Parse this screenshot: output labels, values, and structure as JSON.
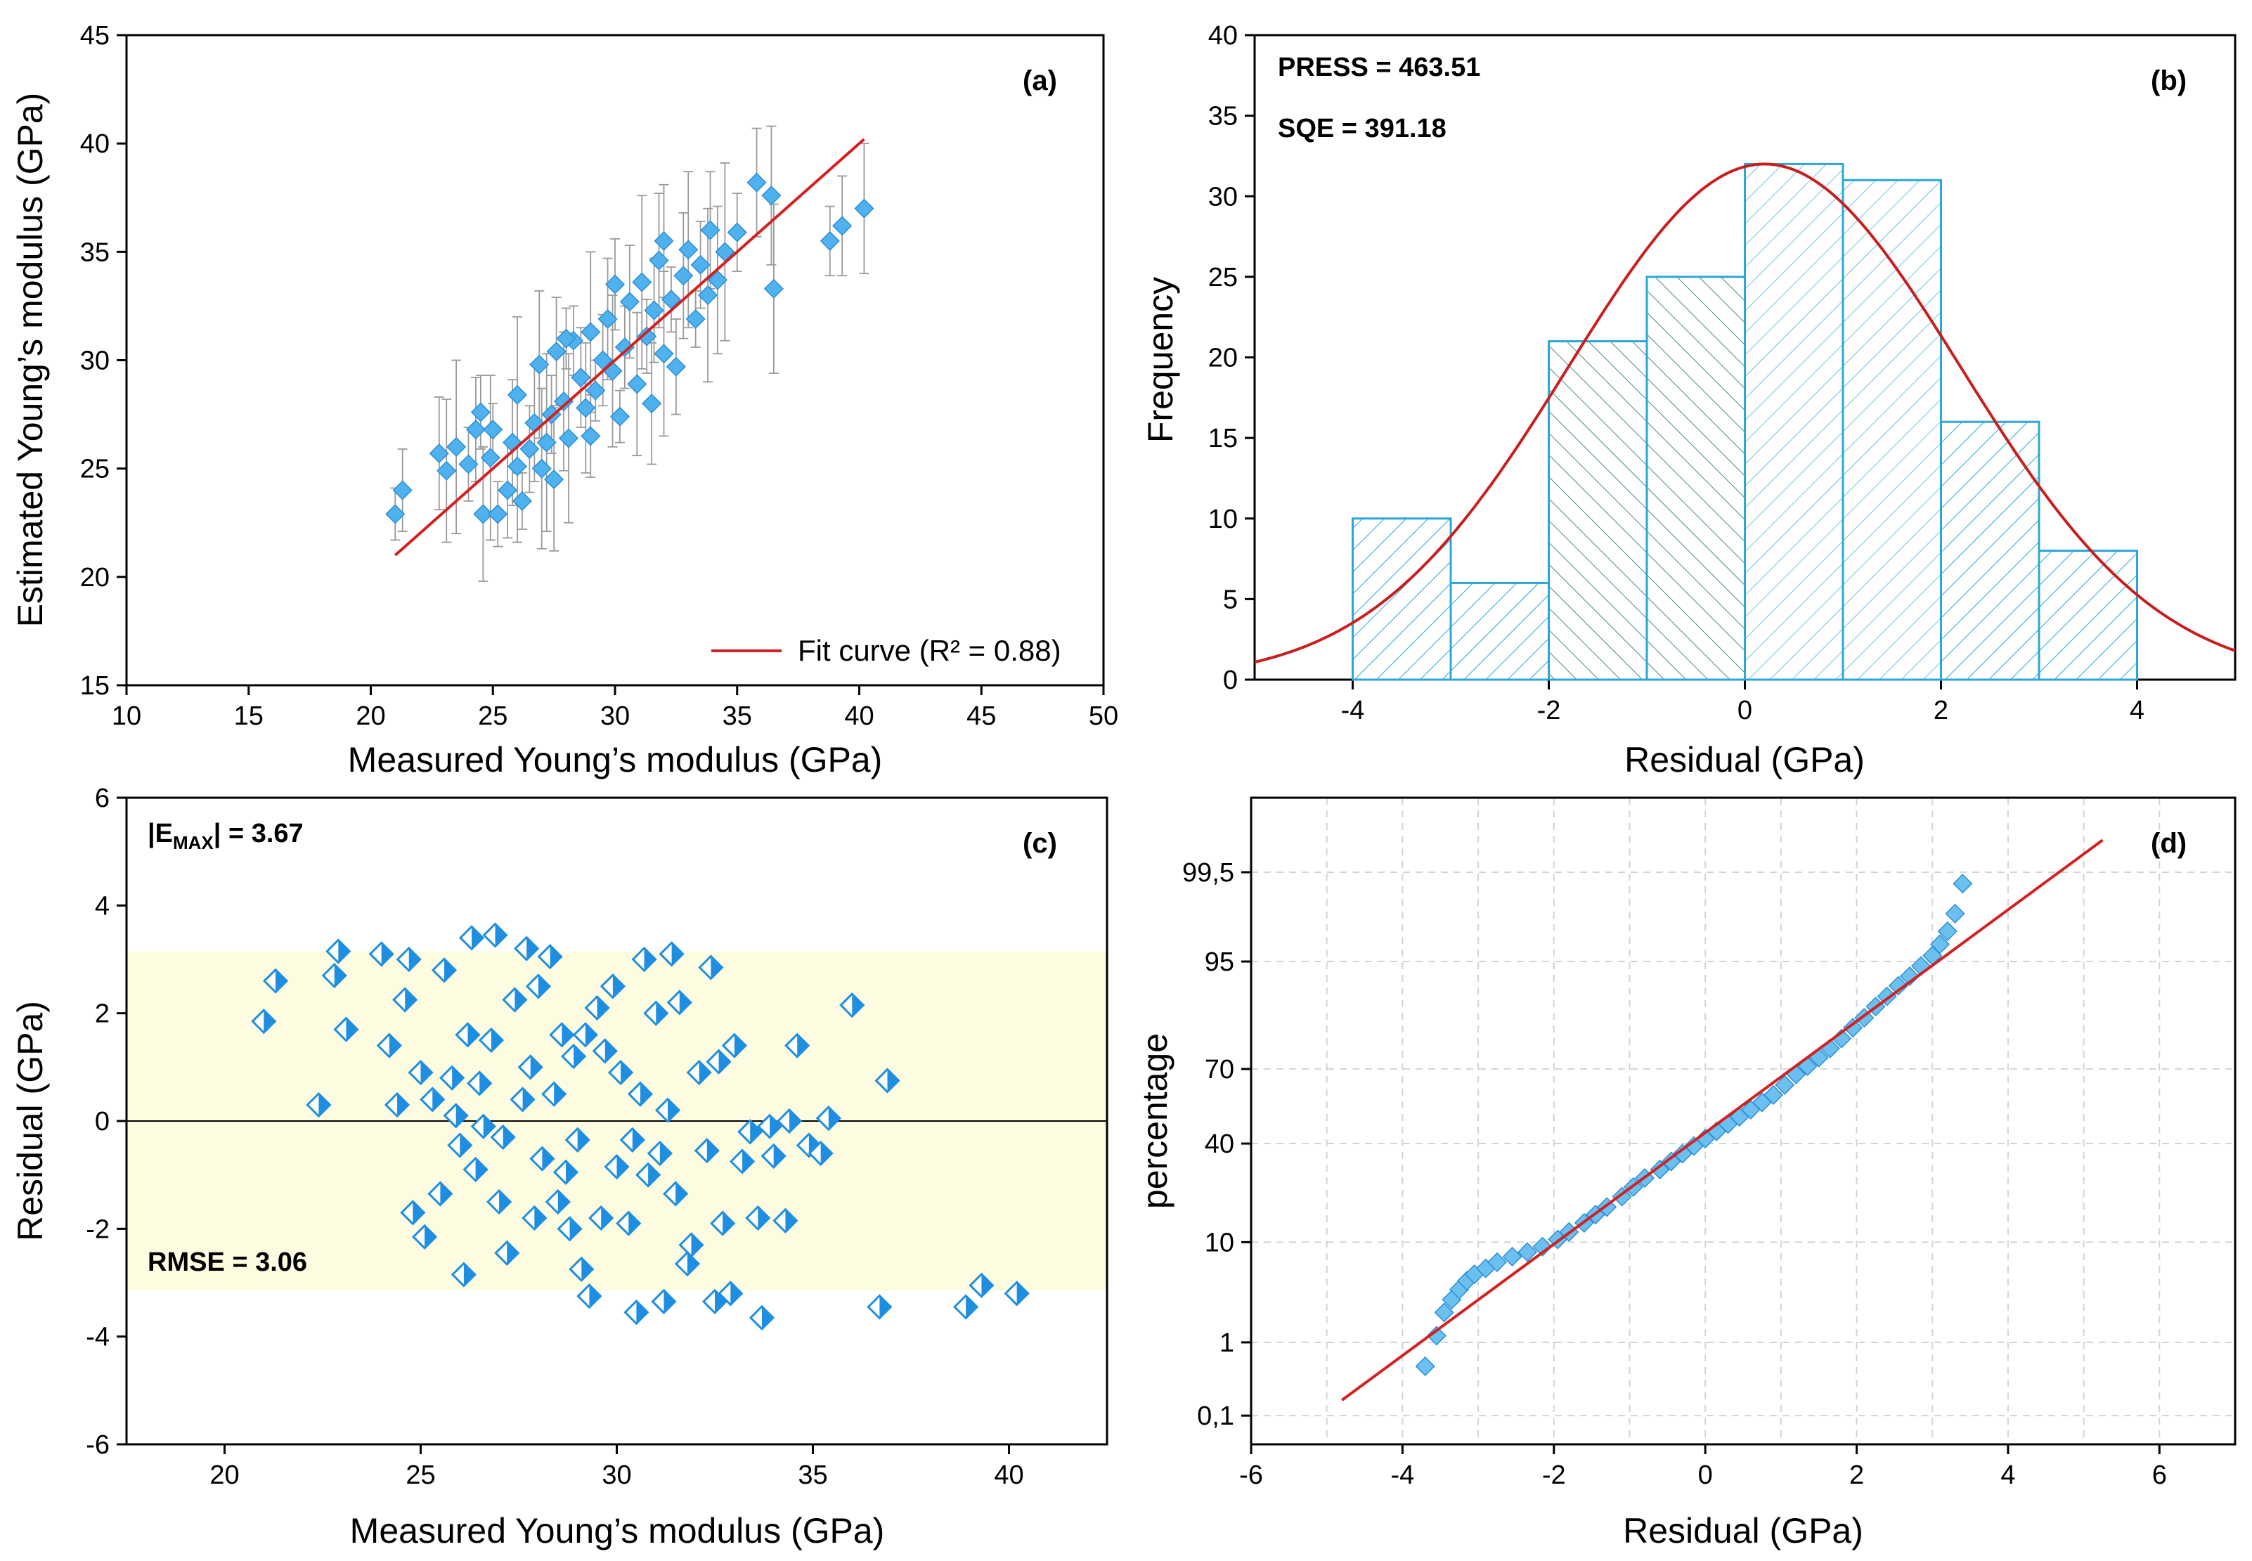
{
  "chart_data": [
    {
      "panel": "(a)",
      "type": "scatter",
      "xlabel": "Measured Young’s modulus (GPa)",
      "ylabel": "Estimated Young’s modulus (GPa)",
      "xlim": [
        10,
        50
      ],
      "ylim": [
        15,
        45
      ],
      "xticks": [
        10,
        15,
        20,
        25,
        30,
        35,
        40,
        45,
        50
      ],
      "yticks": [
        15,
        20,
        25,
        30,
        35,
        40,
        45
      ],
      "legend": "Fit curve (R² = 0.88)",
      "legend_position": "bottom-right",
      "fit_line": {
        "x": [
          21,
          40.2
        ],
        "y": [
          21,
          40.2
        ]
      },
      "points": [
        [
          21.0,
          22.9
        ],
        [
          21.3,
          24.0
        ],
        [
          22.8,
          25.7
        ],
        [
          23.1,
          24.9
        ],
        [
          23.5,
          26.0
        ],
        [
          24.0,
          25.2
        ],
        [
          24.3,
          26.8
        ],
        [
          24.6,
          22.9
        ],
        [
          24.9,
          25.5
        ],
        [
          25.2,
          22.9
        ],
        [
          25.6,
          24.0
        ],
        [
          25.8,
          26.2
        ],
        [
          26.0,
          28.4
        ],
        [
          26.2,
          23.5
        ],
        [
          26.5,
          25.9
        ],
        [
          26.7,
          27.1
        ],
        [
          26.9,
          29.8
        ],
        [
          27.2,
          26.2
        ],
        [
          27.4,
          27.5
        ],
        [
          27.6,
          30.4
        ],
        [
          27.9,
          28.1
        ],
        [
          28.1,
          26.4
        ],
        [
          28.3,
          30.9
        ],
        [
          28.6,
          29.2
        ],
        [
          28.8,
          27.8
        ],
        [
          29.0,
          31.3
        ],
        [
          29.2,
          28.6
        ],
        [
          29.5,
          30.0
        ],
        [
          29.7,
          31.9
        ],
        [
          29.9,
          29.5
        ],
        [
          30.2,
          27.4
        ],
        [
          30.4,
          30.6
        ],
        [
          30.6,
          32.7
        ],
        [
          30.9,
          28.9
        ],
        [
          31.1,
          33.6
        ],
        [
          31.3,
          31.1
        ],
        [
          31.6,
          32.3
        ],
        [
          31.8,
          34.6
        ],
        [
          32.0,
          30.3
        ],
        [
          32.3,
          32.8
        ],
        [
          32.5,
          29.7
        ],
        [
          32.8,
          33.9
        ],
        [
          33.0,
          35.1
        ],
        [
          33.3,
          31.9
        ],
        [
          33.5,
          34.4
        ],
        [
          33.9,
          36.0
        ],
        [
          34.2,
          33.7
        ],
        [
          34.5,
          35.0
        ],
        [
          35.0,
          35.9
        ],
        [
          35.8,
          38.2
        ],
        [
          36.4,
          37.6
        ],
        [
          36.5,
          33.3
        ],
        [
          38.8,
          35.5
        ],
        [
          39.3,
          36.2
        ],
        [
          40.2,
          37.0
        ],
        [
          27.0,
          25.0
        ],
        [
          28.0,
          31.0
        ],
        [
          30.0,
          33.5
        ],
        [
          31.5,
          28.0
        ],
        [
          26.0,
          25.1
        ],
        [
          25.0,
          26.8
        ],
        [
          29.0,
          26.5
        ],
        [
          32.0,
          35.5
        ],
        [
          27.5,
          24.5
        ],
        [
          33.8,
          33.0
        ],
        [
          24.5,
          27.6
        ]
      ]
    },
    {
      "panel": "(b)",
      "type": "bar",
      "subtype": "histogram with normal curve",
      "xlabel": "Residual (GPa)",
      "ylabel": "Frequency",
      "xlim": [
        -5,
        5
      ],
      "ylim": [
        0,
        40
      ],
      "xticks": [
        -4,
        -2,
        0,
        2,
        4
      ],
      "yticks": [
        0,
        5,
        10,
        15,
        20,
        25,
        30,
        35,
        40
      ],
      "bins": [
        [
          -4,
          -3
        ],
        [
          -3,
          -2
        ],
        [
          -2,
          -1
        ],
        [
          -1,
          0
        ],
        [
          0,
          1
        ],
        [
          1,
          2
        ],
        [
          2,
          3
        ],
        [
          3,
          4
        ]
      ],
      "values": [
        10,
        6,
        21,
        25,
        32,
        31,
        16,
        8
      ],
      "normal_curve": {
        "mean": 0.2,
        "peak": 32,
        "sd": 2.0
      },
      "annotations": [
        "PRESS = 463.51",
        "SQE = 391.18"
      ]
    },
    {
      "panel": "(c)",
      "type": "scatter",
      "xlabel": "Measured Young’s modulus (GPa)",
      "ylabel": "Residual (GPa)",
      "xlim": [
        17.5,
        42.5
      ],
      "ylim": [
        -6,
        6
      ],
      "xticks": [
        20,
        25,
        30,
        35,
        40
      ],
      "yticks": [
        -6,
        -4,
        -2,
        0,
        2,
        4,
        6
      ],
      "band": [
        -3.15,
        3.15
      ],
      "zero_line": 0,
      "annotations": [
        "|E",
        "MAX",
        "| = 3.67",
        "RMSE = 3.06"
      ],
      "points": [
        [
          21.0,
          1.85
        ],
        [
          21.3,
          2.6
        ],
        [
          22.4,
          0.3
        ],
        [
          22.8,
          2.7
        ],
        [
          22.9,
          3.15
        ],
        [
          23.1,
          1.7
        ],
        [
          24.0,
          3.1
        ],
        [
          24.2,
          1.4
        ],
        [
          24.4,
          0.3
        ],
        [
          24.6,
          2.25
        ],
        [
          24.7,
          3.0
        ],
        [
          24.8,
          -1.7
        ],
        [
          25.0,
          0.9
        ],
        [
          25.1,
          -2.15
        ],
        [
          25.3,
          0.4
        ],
        [
          25.5,
          -1.35
        ],
        [
          25.6,
          2.8
        ],
        [
          25.8,
          0.8
        ],
        [
          25.9,
          0.1
        ],
        [
          26.0,
          -0.45
        ],
        [
          26.1,
          -2.85
        ],
        [
          26.2,
          1.6
        ],
        [
          26.3,
          3.4
        ],
        [
          26.4,
          -0.9
        ],
        [
          26.5,
          0.7
        ],
        [
          26.6,
          -0.1
        ],
        [
          26.8,
          1.5
        ],
        [
          26.9,
          3.45
        ],
        [
          27.0,
          -1.5
        ],
        [
          27.1,
          -0.3
        ],
        [
          27.2,
          -2.45
        ],
        [
          27.4,
          2.25
        ],
        [
          27.6,
          0.4
        ],
        [
          27.7,
          3.2
        ],
        [
          27.8,
          1.0
        ],
        [
          27.9,
          -1.8
        ],
        [
          28.0,
          2.5
        ],
        [
          28.1,
          -0.7
        ],
        [
          28.3,
          3.05
        ],
        [
          28.4,
          0.5
        ],
        [
          28.5,
          -1.5
        ],
        [
          28.6,
          1.6
        ],
        [
          28.7,
          -0.95
        ],
        [
          28.8,
          -2.0
        ],
        [
          28.9,
          1.2
        ],
        [
          29.0,
          -0.35
        ],
        [
          29.1,
          -2.75
        ],
        [
          29.2,
          1.6
        ],
        [
          29.3,
          -3.25
        ],
        [
          29.5,
          2.1
        ],
        [
          29.6,
          -1.8
        ],
        [
          29.7,
          1.3
        ],
        [
          29.9,
          2.5
        ],
        [
          30.0,
          -0.85
        ],
        [
          30.1,
          0.9
        ],
        [
          30.3,
          -1.9
        ],
        [
          30.4,
          -0.35
        ],
        [
          30.5,
          -3.55
        ],
        [
          30.6,
          0.5
        ],
        [
          30.7,
          3.0
        ],
        [
          30.8,
          -1.0
        ],
        [
          31.0,
          2.0
        ],
        [
          31.1,
          -0.6
        ],
        [
          31.2,
          -3.35
        ],
        [
          31.3,
          0.2
        ],
        [
          31.4,
          3.1
        ],
        [
          31.5,
          -1.35
        ],
        [
          31.6,
          2.2
        ],
        [
          31.8,
          -2.65
        ],
        [
          31.9,
          -2.3
        ],
        [
          32.1,
          0.9
        ],
        [
          32.3,
          -0.55
        ],
        [
          32.4,
          2.85
        ],
        [
          32.5,
          -3.35
        ],
        [
          32.6,
          1.1
        ],
        [
          32.7,
          -1.9
        ],
        [
          32.9,
          -3.2
        ],
        [
          33.0,
          1.4
        ],
        [
          33.2,
          -0.75
        ],
        [
          33.4,
          -0.2
        ],
        [
          33.6,
          -1.8
        ],
        [
          33.7,
          -3.65
        ],
        [
          33.9,
          -0.1
        ],
        [
          34.0,
          -0.65
        ],
        [
          34.3,
          -1.85
        ],
        [
          34.4,
          0.0
        ],
        [
          34.6,
          1.4
        ],
        [
          34.9,
          -0.45
        ],
        [
          35.2,
          -0.6
        ],
        [
          35.4,
          0.05
        ],
        [
          36.0,
          2.15
        ],
        [
          36.7,
          -3.45
        ],
        [
          36.9,
          0.75
        ],
        [
          38.9,
          -3.45
        ],
        [
          39.3,
          -3.05
        ],
        [
          40.2,
          -3.2
        ]
      ]
    },
    {
      "panel": "(d)",
      "type": "scatter",
      "subtype": "normal probability plot",
      "xlabel": "Residual (GPa)",
      "ylabel": "percentage",
      "xlim": [
        -6,
        7
      ],
      "xticks": [
        -6,
        -4,
        -2,
        0,
        2,
        4,
        6
      ],
      "ytick_labels": [
        "0,1",
        "1",
        "10",
        "40",
        "70",
        "95",
        "99,5"
      ],
      "ytick_percent": [
        0.1,
        1,
        10,
        40,
        70,
        95,
        99.5
      ],
      "ylim_percent": [
        0.035,
        99.96
      ],
      "fit_line": {
        "x": [
          -4.8,
          5.25
        ],
        "percent": [
          0.17,
          99.82
        ]
      },
      "points": [
        [
          -3.7,
          0.5
        ],
        [
          -3.55,
          1.2
        ],
        [
          -3.45,
          2.2
        ],
        [
          -3.35,
          3.0
        ],
        [
          -3.25,
          3.8
        ],
        [
          -3.15,
          4.6
        ],
        [
          -3.05,
          5.3
        ],
        [
          -2.9,
          6.0
        ],
        [
          -2.75,
          6.8
        ],
        [
          -2.55,
          7.6
        ],
        [
          -2.35,
          8.3
        ],
        [
          -2.15,
          9.2
        ],
        [
          -1.95,
          10.5
        ],
        [
          -1.8,
          12.0
        ],
        [
          -1.6,
          14.0
        ],
        [
          -1.45,
          16.0
        ],
        [
          -1.3,
          18.0
        ],
        [
          -1.1,
          21.0
        ],
        [
          -0.95,
          24.0
        ],
        [
          -0.8,
          27.0
        ],
        [
          -0.6,
          30.0
        ],
        [
          -0.45,
          33.0
        ],
        [
          -0.3,
          36.0
        ],
        [
          -0.15,
          39.0
        ],
        [
          0.0,
          42.0
        ],
        [
          0.15,
          45.0
        ],
        [
          0.3,
          48.0
        ],
        [
          0.45,
          51.0
        ],
        [
          0.6,
          54.0
        ],
        [
          0.75,
          57.0
        ],
        [
          0.9,
          60.0
        ],
        [
          1.05,
          64.0
        ],
        [
          1.2,
          68.0
        ],
        [
          1.35,
          71.0
        ],
        [
          1.5,
          74.0
        ],
        [
          1.65,
          77.0
        ],
        [
          1.8,
          80.0
        ],
        [
          1.95,
          83.0
        ],
        [
          2.1,
          85.5
        ],
        [
          2.25,
          88.0
        ],
        [
          2.4,
          90.0
        ],
        [
          2.55,
          91.8
        ],
        [
          2.7,
          93.2
        ],
        [
          2.85,
          94.5
        ],
        [
          3.0,
          95.6
        ],
        [
          3.1,
          96.6
        ],
        [
          3.2,
          97.5
        ],
        [
          3.3,
          98.4
        ],
        [
          3.4,
          99.3
        ]
      ]
    }
  ]
}
